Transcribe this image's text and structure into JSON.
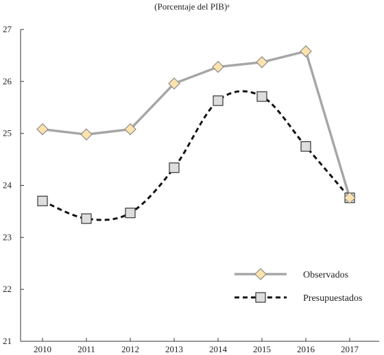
{
  "chart_data": {
    "type": "line",
    "subtitle": "(Porcentaje del PIB)ᵃ",
    "x": [
      2010,
      2011,
      2012,
      2013,
      2014,
      2015,
      2016,
      2017
    ],
    "xlabel": "",
    "ylabel": "",
    "ylim": [
      21,
      27
    ],
    "yticks": [
      21,
      22,
      23,
      24,
      25,
      26,
      27
    ],
    "grid": false,
    "legend_position": "bottom-right",
    "series": [
      {
        "name": "Observados",
        "values": [
          25.08,
          24.98,
          25.08,
          25.96,
          26.28,
          26.37,
          26.58,
          23.76
        ],
        "line_color": "#a6a6a6",
        "line_style": "solid",
        "smooth": false,
        "marker": "diamond",
        "marker_fill": "#fce3ad",
        "marker_stroke": "#8c8c8c"
      },
      {
        "name": "Presupuestados",
        "values": [
          23.7,
          23.36,
          23.47,
          24.34,
          25.63,
          25.71,
          24.75,
          23.76
        ],
        "line_color": "#111111",
        "line_style": "dashed",
        "smooth": true,
        "marker": "square",
        "marker_fill": "#dedede",
        "marker_stroke": "#333333"
      }
    ]
  }
}
